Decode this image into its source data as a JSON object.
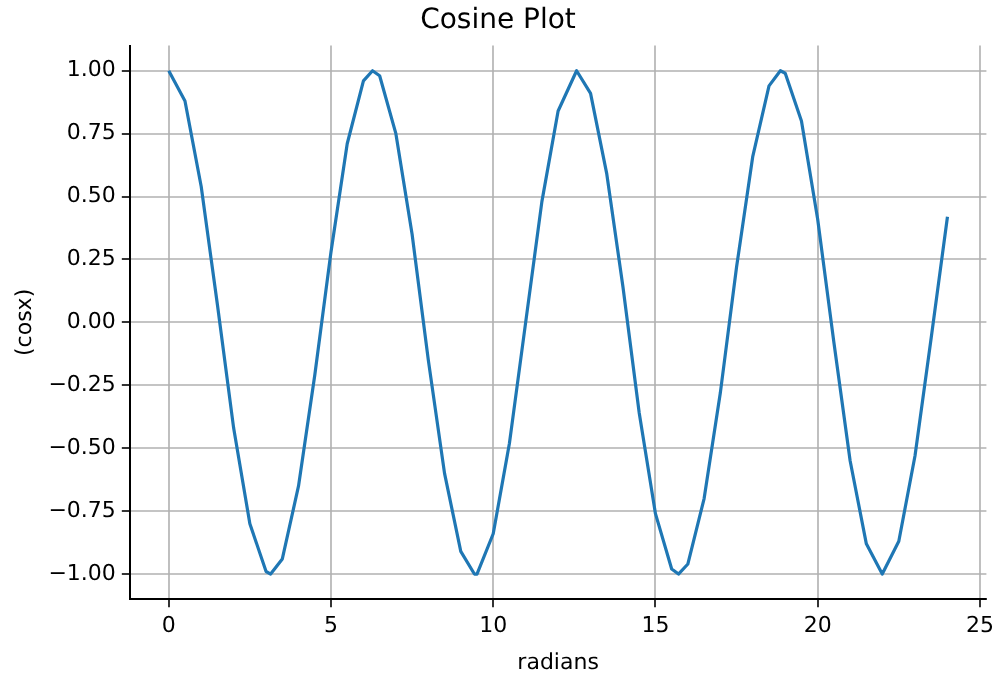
{
  "chart_data": {
    "type": "line",
    "title": "Cosine Plot",
    "xlabel": "radians",
    "ylabel": "(cosx)",
    "grid": true,
    "marker": "none",
    "line_style": "solid",
    "xlim": [
      -1.2,
      25.2
    ],
    "xticks": [
      0,
      5,
      10,
      15,
      20,
      25
    ],
    "ylim": [
      -1.1,
      1.1
    ],
    "yticks": [
      {
        "value": -1,
        "label": "−1.00"
      },
      {
        "value": -0.75,
        "label": "−0.75"
      },
      {
        "value": -0.5,
        "label": "−0.50"
      },
      {
        "value": -0.25,
        "label": "−0.25"
      },
      {
        "value": 0,
        "label": "0.00"
      },
      {
        "value": 0.25,
        "label": "0.25"
      },
      {
        "value": 0.5,
        "label": "0.50"
      },
      {
        "value": 0.75,
        "label": "0.75"
      },
      {
        "value": 1,
        "label": "1.00"
      }
    ],
    "series": [
      {
        "color": "#1f77b4",
        "x": [
          0,
          0.5,
          1,
          1.5,
          2,
          2.5,
          3,
          3.14,
          3.5,
          4,
          4.5,
          5,
          5.5,
          6,
          6.28,
          6.5,
          7,
          7.5,
          8,
          8.5,
          9,
          9.42,
          9.5,
          10,
          10.5,
          11,
          11.5,
          12,
          12.57,
          13,
          13.5,
          14,
          14.5,
          15,
          15.5,
          15.71,
          16,
          16.5,
          17,
          17.5,
          18,
          18.5,
          18.85,
          19,
          19.5,
          20,
          20.5,
          21,
          21.5,
          21.99,
          22,
          22.5,
          23,
          23.5,
          24
        ],
        "values": [
          1,
          0.88,
          0.54,
          0.07,
          -0.42,
          -0.8,
          -0.99,
          -1,
          -0.94,
          -0.65,
          -0.21,
          0.28,
          0.71,
          0.96,
          1,
          0.98,
          0.75,
          0.35,
          -0.15,
          -0.6,
          -0.91,
          -1,
          -1,
          -0.84,
          -0.48,
          0,
          0.48,
          0.84,
          1,
          0.91,
          0.59,
          0.14,
          -0.36,
          -0.76,
          -0.98,
          -1,
          -0.96,
          -0.7,
          -0.28,
          0.22,
          0.66,
          0.94,
          1,
          0.99,
          0.8,
          0.41,
          -0.08,
          -0.55,
          -0.88,
          -1,
          -1,
          -0.87,
          -0.53,
          -0.06,
          0.42
        ]
      }
    ]
  }
}
